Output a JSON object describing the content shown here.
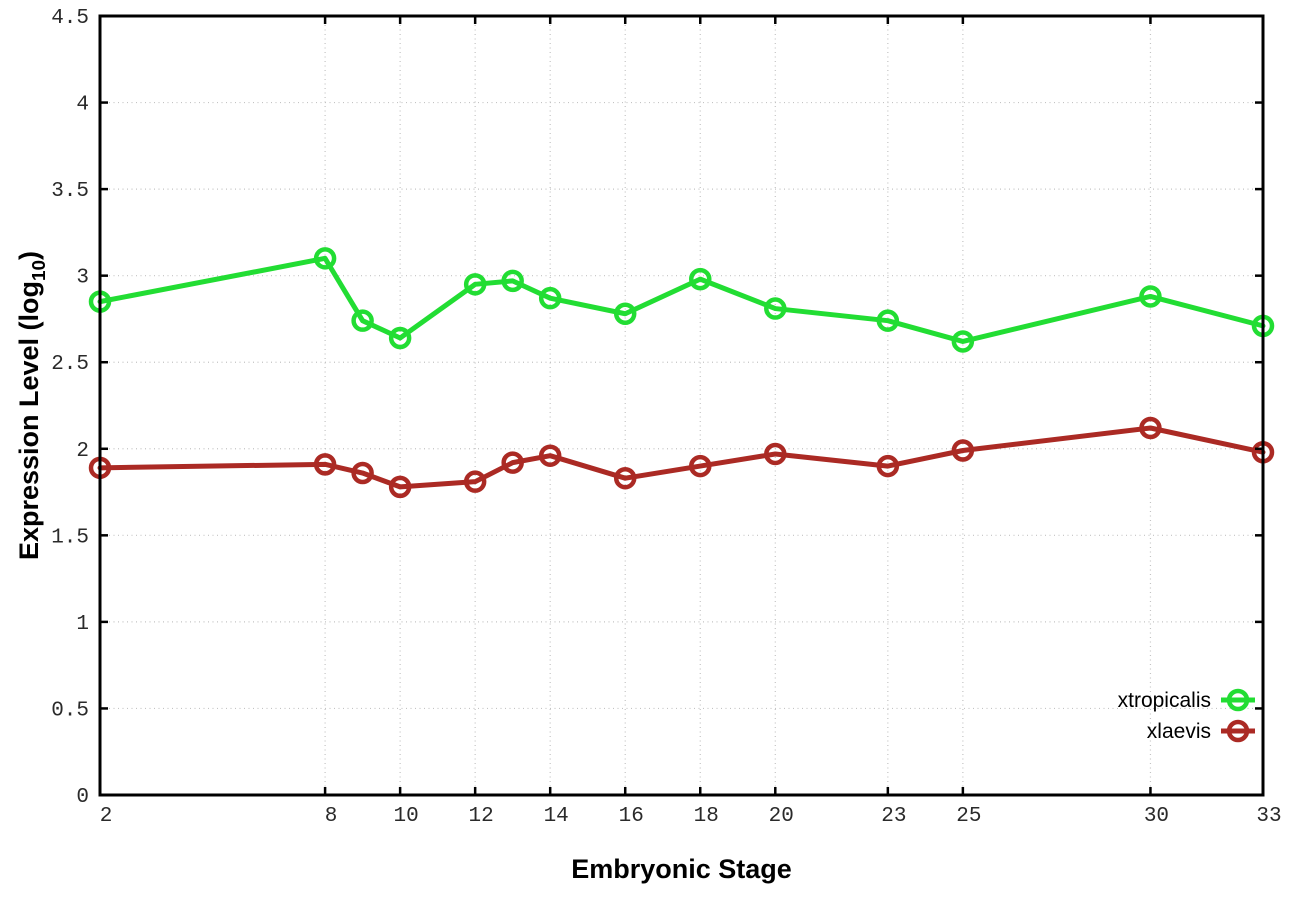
{
  "figure": {
    "background_color": "#ffffff"
  },
  "chart_data": {
    "type": "line",
    "title": "",
    "xlabel": "Embryonic Stage",
    "ylabel": {
      "main": "Expression Level (log",
      "subscript": "10",
      "suffix": ")"
    },
    "xlim": [
      2,
      33
    ],
    "ylim": [
      0,
      4.5
    ],
    "grid": true,
    "legend_position": "inside-bottom-right",
    "x": [
      2,
      8,
      9,
      10,
      12,
      13,
      14,
      16,
      18,
      20,
      23,
      25,
      30,
      33
    ],
    "xtick_values": [
      2,
      8,
      10,
      12,
      14,
      16,
      18,
      20,
      23,
      25,
      30,
      33
    ],
    "xtick_labels": [
      "2",
      "8",
      "10",
      "12",
      "14",
      "16",
      "18",
      "20",
      "23",
      "25",
      "30",
      "33"
    ],
    "ytick_values": [
      0,
      0.5,
      1,
      1.5,
      2,
      2.5,
      3,
      3.5,
      4,
      4.5
    ],
    "ytick_labels": [
      "0",
      "0.5",
      "1",
      "1.5",
      "2",
      "2.5",
      "3",
      "3.5",
      "4",
      "4.5"
    ],
    "series": [
      {
        "name": "xtropicalis",
        "color": "#22dd33",
        "marker": "open-circle",
        "values": [
          2.85,
          3.1,
          2.74,
          2.64,
          2.95,
          2.97,
          2.87,
          2.78,
          2.98,
          2.81,
          2.74,
          2.62,
          2.88,
          2.71
        ]
      },
      {
        "name": "xlaevis",
        "color": "#ab2a24",
        "marker": "open-circle",
        "values": [
          1.89,
          1.91,
          1.86,
          1.78,
          1.81,
          1.92,
          1.96,
          1.83,
          1.9,
          1.97,
          1.9,
          1.99,
          2.12,
          1.98
        ]
      }
    ],
    "colors": {
      "grid": "#c3c3c3",
      "border": "#000000",
      "tick": "#000000",
      "tick_label": "#2a2a2a",
      "axis_title": "#000000"
    }
  }
}
